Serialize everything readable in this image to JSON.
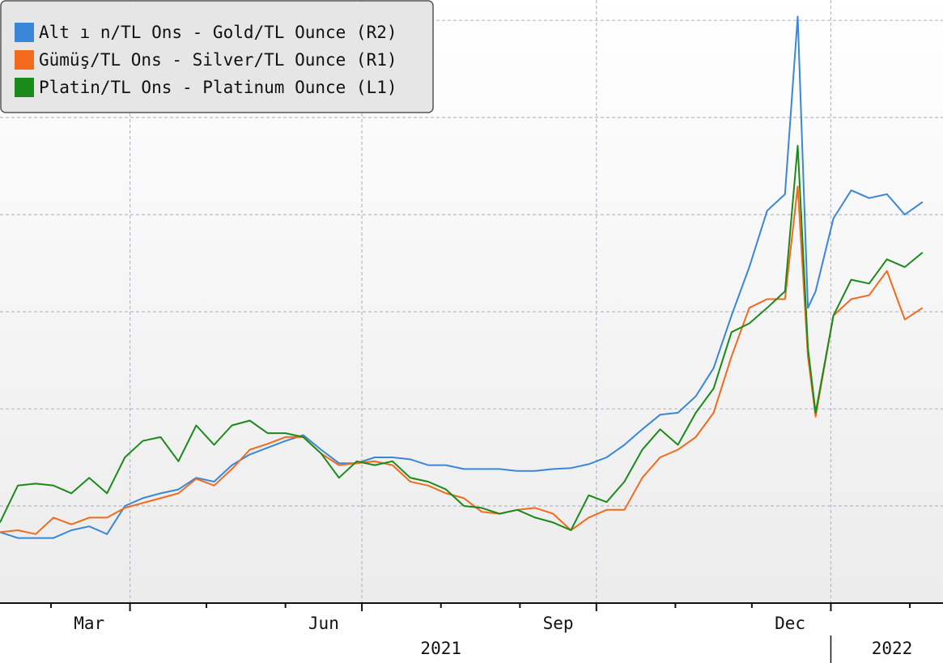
{
  "chart_data": {
    "type": "line",
    "x": [
      "2021-02-09",
      "2021-02-16",
      "2021-02-23",
      "2021-03-02",
      "2021-03-09",
      "2021-03-16",
      "2021-03-23",
      "2021-03-30",
      "2021-04-06",
      "2021-04-13",
      "2021-04-20",
      "2021-04-27",
      "2021-05-04",
      "2021-05-11",
      "2021-05-18",
      "2021-05-25",
      "2021-06-01",
      "2021-06-08",
      "2021-06-15",
      "2021-06-22",
      "2021-06-29",
      "2021-07-06",
      "2021-07-13",
      "2021-07-20",
      "2021-07-27",
      "2021-08-03",
      "2021-08-10",
      "2021-08-17",
      "2021-08-24",
      "2021-08-31",
      "2021-09-07",
      "2021-09-14",
      "2021-09-21",
      "2021-09-28",
      "2021-10-05",
      "2021-10-12",
      "2021-10-19",
      "2021-10-26",
      "2021-11-02",
      "2021-11-09",
      "2021-11-16",
      "2021-11-23",
      "2021-11-30",
      "2021-12-07",
      "2021-12-14",
      "2021-12-19",
      "2021-12-23",
      "2021-12-26",
      "2022-01-02",
      "2022-01-09",
      "2022-01-16",
      "2022-01-23",
      "2022-01-30",
      "2022-02-06"
    ],
    "series": [
      {
        "name": "Alt ı n/TL Ons - Gold/TL Ounce (R2)",
        "color": "#3a86d8",
        "values": [
          7.3,
          6.7,
          6.7,
          6.7,
          7.5,
          7.9,
          7.1,
          10,
          10.8,
          11.3,
          11.7,
          12.9,
          12.5,
          14.2,
          15.3,
          16,
          16.7,
          17.3,
          15.8,
          14.4,
          14.4,
          15,
          15,
          14.8,
          14.2,
          14.2,
          13.8,
          13.8,
          13.8,
          13.6,
          13.6,
          13.8,
          13.9,
          14.3,
          15,
          16.3,
          17.9,
          19.4,
          19.6,
          21.3,
          24.2,
          29.6,
          34.6,
          40.4,
          42.1,
          60.4,
          30.4,
          32.1,
          39.6,
          42.5,
          41.7,
          42.1,
          40,
          41.3
        ]
      },
      {
        "name": "Gümüş/TL Ons - Silver/TL Ounce (R1)",
        "color": "#f26a1b",
        "values": [
          7.3,
          7.5,
          7.1,
          8.8,
          8.1,
          8.8,
          8.8,
          9.8,
          10.3,
          10.8,
          11.3,
          12.8,
          12.1,
          13.8,
          15.8,
          16.4,
          17.1,
          17.1,
          15.4,
          14.2,
          14.4,
          14.6,
          14.2,
          12.5,
          12.1,
          11.3,
          10.8,
          9.4,
          9.2,
          9.6,
          9.8,
          9.2,
          7.5,
          8.8,
          9.6,
          9.6,
          12.9,
          15,
          15.8,
          17.1,
          19.6,
          25.4,
          30.4,
          31.3,
          31.3,
          42.9,
          25.4,
          19.2,
          29.6,
          31.3,
          31.7,
          34.2,
          29.2,
          30.4
        ]
      },
      {
        "name": "Platin/TL Ons - Platinum Ounce (L1)",
        "color": "#1a8a1a",
        "values": [
          8.3,
          12.1,
          12.3,
          12.1,
          11.3,
          12.9,
          11.3,
          15,
          16.7,
          17.1,
          14.6,
          18.3,
          16.3,
          18.3,
          18.8,
          17.5,
          17.5,
          17.1,
          15.4,
          12.9,
          14.6,
          14.2,
          14.6,
          12.9,
          12.5,
          11.7,
          10,
          9.8,
          9.2,
          9.6,
          8.8,
          8.3,
          7.5,
          11.1,
          10.4,
          12.5,
          15.8,
          17.9,
          16.3,
          19.6,
          22.1,
          27.9,
          28.8,
          30.4,
          32.1,
          47.1,
          26.3,
          19.6,
          29.6,
          33.3,
          32.9,
          35.4,
          34.6,
          36.1
        ]
      }
    ],
    "xlim": [
      "2021-02-09",
      "2022-02-14"
    ],
    "xticks": [
      "2021-03-01",
      "2021-04-01",
      "2021-05-01",
      "2021-06-01",
      "2021-07-01",
      "2021-08-01",
      "2021-09-01",
      "2021-10-01",
      "2021-11-01",
      "2021-12-01",
      "2022-01-01",
      "2022-02-01"
    ],
    "month_labels": [
      {
        "value": "2021-03-16",
        "label": "Mar"
      },
      {
        "value": "2021-06-16",
        "label": "Jun"
      },
      {
        "value": "2021-09-16",
        "label": "Sep"
      },
      {
        "value": "2021-12-16",
        "label": "Dec"
      }
    ],
    "year_labels": [
      {
        "value": "2021-08-01",
        "label": "2021"
      },
      {
        "value": "2022-01-25",
        "label": "2022"
      }
    ],
    "year_boundaries": [
      "2022-01-01"
    ],
    "ylim": [
      0,
      62.1
    ],
    "yticks": [
      10,
      20,
      30,
      40,
      50,
      60
    ],
    "grid": true,
    "legend": "upper left"
  }
}
